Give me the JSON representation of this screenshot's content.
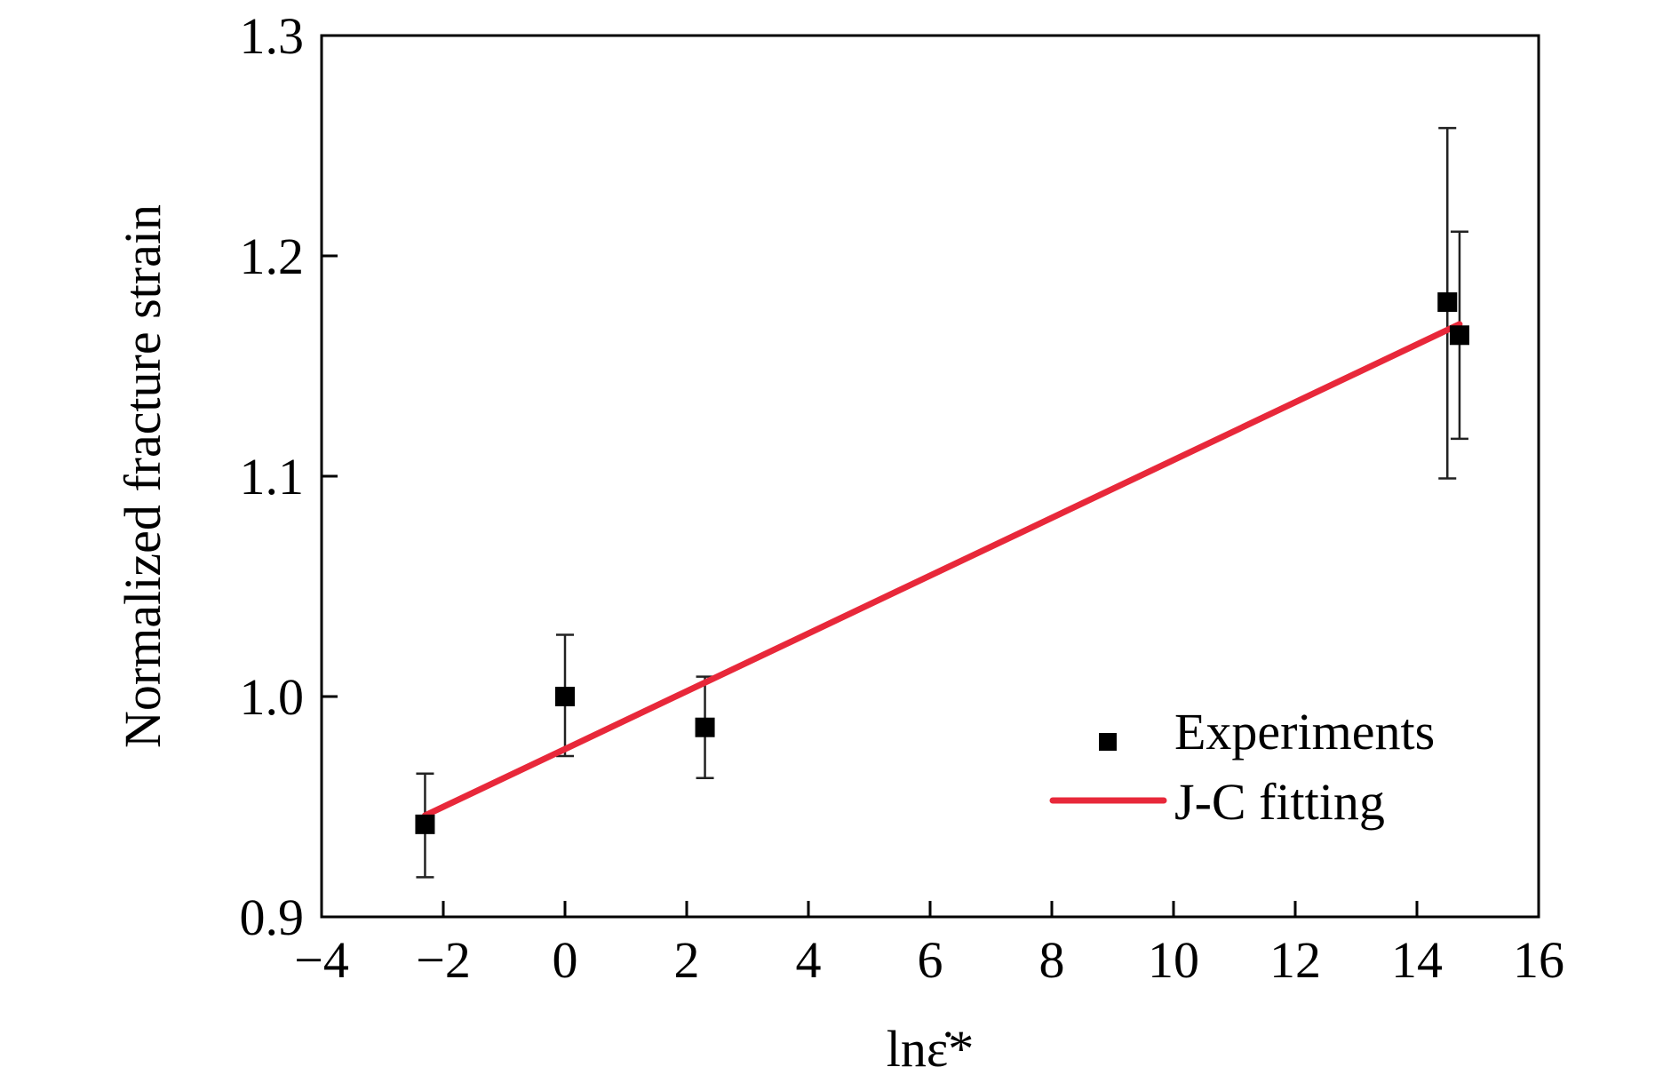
{
  "chart_data": {
    "type": "scatter",
    "title": "",
    "xlabel": "lnε̇*",
    "ylabel": "Normalized fracture strain",
    "xlim": [
      -4,
      16
    ],
    "ylim": [
      0.9,
      1.3
    ],
    "xticks": [
      -4,
      -2,
      0,
      2,
      4,
      6,
      8,
      10,
      12,
      14,
      16
    ],
    "xtick_labels": [
      "−4",
      "−2",
      "0",
      "2",
      "4",
      "6",
      "8",
      "10",
      "12",
      "14",
      "16"
    ],
    "yticks": [
      0.9,
      1.0,
      1.1,
      1.2,
      1.3
    ],
    "ytick_labels": [
      "0.9",
      "1.0",
      "1.1",
      "1.2",
      "1.3"
    ],
    "grid": false,
    "legend_position": "bottom-right",
    "series": [
      {
        "name": "Experiments",
        "kind": "scatter",
        "marker": "square",
        "color": "#000000",
        "x": [
          -2.3,
          0,
          2.3,
          14.5,
          14.7
        ],
        "y": [
          0.942,
          1.0,
          0.986,
          1.179,
          1.164
        ],
        "error_low": [
          0.918,
          0.973,
          0.963,
          1.099,
          1.117
        ],
        "error_high": [
          0.965,
          1.028,
          1.009,
          1.258,
          1.211
        ]
      },
      {
        "name": "J-C fitting",
        "kind": "line",
        "color": "#e8283a",
        "x": [
          -2.3,
          14.7
        ],
        "y": [
          0.946,
          1.169
        ]
      }
    ]
  }
}
